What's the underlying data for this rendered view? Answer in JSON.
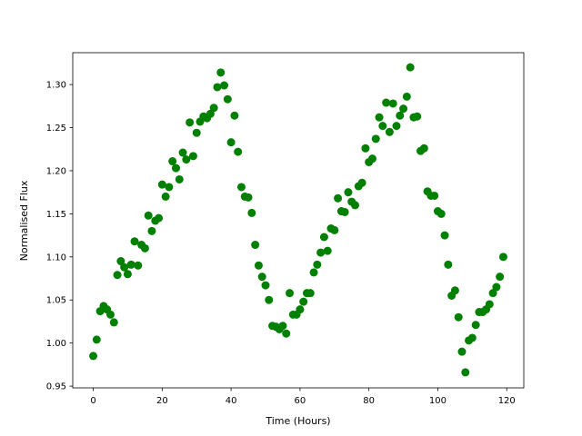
{
  "chart_data": {
    "type": "scatter",
    "x_label": "Time (Hours)",
    "y_label": "Normalised Flux",
    "x": [
      0,
      1,
      2,
      3,
      4,
      5,
      6,
      7,
      8,
      9,
      10,
      11,
      12,
      13,
      14,
      15,
      16,
      17,
      18,
      19,
      20,
      21,
      22,
      23,
      24,
      25,
      26,
      27,
      28,
      29,
      30,
      31,
      32,
      33,
      34,
      35,
      36,
      37,
      38,
      39,
      40,
      41,
      42,
      43,
      44,
      45,
      46,
      47,
      48,
      49,
      50,
      51,
      52,
      53,
      54,
      55,
      56,
      57,
      58,
      59,
      60,
      61,
      62,
      63,
      64,
      65,
      66,
      67,
      68,
      69,
      70,
      71,
      72,
      73,
      74,
      75,
      76,
      77,
      78,
      79,
      80,
      81,
      82,
      83,
      84,
      85,
      86,
      87,
      88,
      89,
      90,
      91,
      92,
      93,
      94,
      95,
      96,
      97,
      98,
      99,
      100,
      101,
      102,
      103,
      104,
      105,
      106,
      107,
      108,
      109,
      110,
      111,
      112,
      113,
      114,
      115,
      116,
      117,
      118,
      119
    ],
    "values": [
      0.985,
      1.004,
      1.037,
      1.043,
      1.039,
      1.033,
      1.024,
      1.079,
      1.095,
      1.088,
      1.08,
      1.091,
      1.118,
      1.09,
      1.114,
      1.11,
      1.148,
      1.13,
      1.142,
      1.145,
      1.184,
      1.17,
      1.181,
      1.211,
      1.203,
      1.19,
      1.221,
      1.213,
      1.256,
      1.217,
      1.244,
      1.257,
      1.263,
      1.261,
      1.266,
      1.273,
      1.297,
      1.314,
      1.299,
      1.283,
      1.233,
      1.264,
      1.222,
      1.181,
      1.17,
      1.169,
      1.151,
      1.114,
      1.09,
      1.077,
      1.067,
      1.05,
      1.02,
      1.019,
      1.016,
      1.02,
      1.011,
      1.058,
      1.033,
      1.033,
      1.039,
      1.048,
      1.058,
      1.058,
      1.082,
      1.091,
      1.105,
      1.123,
      1.107,
      1.133,
      1.131,
      1.168,
      1.153,
      1.152,
      1.175,
      1.164,
      1.16,
      1.182,
      1.186,
      1.226,
      1.21,
      1.214,
      1.237,
      1.262,
      1.252,
      1.279,
      1.245,
      1.278,
      1.252,
      1.264,
      1.272,
      1.286,
      1.32,
      1.262,
      1.263,
      1.223,
      1.226,
      1.176,
      1.171,
      1.171,
      1.153,
      1.15,
      1.125,
      1.091,
      1.055,
      1.061,
      1.03,
      0.99,
      0.966,
      1.003,
      1.006,
      1.021,
      1.036,
      1.036,
      1.039,
      1.045,
      1.058,
      1.065,
      1.077,
      1.1
    ],
    "color": "#008000",
    "xlim": [
      -5.95,
      124.95
    ],
    "ylim": [
      0.948,
      1.337
    ],
    "xticks": [
      0,
      20,
      40,
      60,
      80,
      100,
      120
    ],
    "yticks": [
      0.95,
      {
        "value": 1.0,
        "label": "1.00"
      },
      1.05,
      {
        "value": 1.1,
        "label": "1.10"
      },
      1.15,
      {
        "value": 1.2,
        "label": "1.20"
      },
      1.25,
      {
        "value": 1.3,
        "label": "1.30"
      }
    ]
  }
}
